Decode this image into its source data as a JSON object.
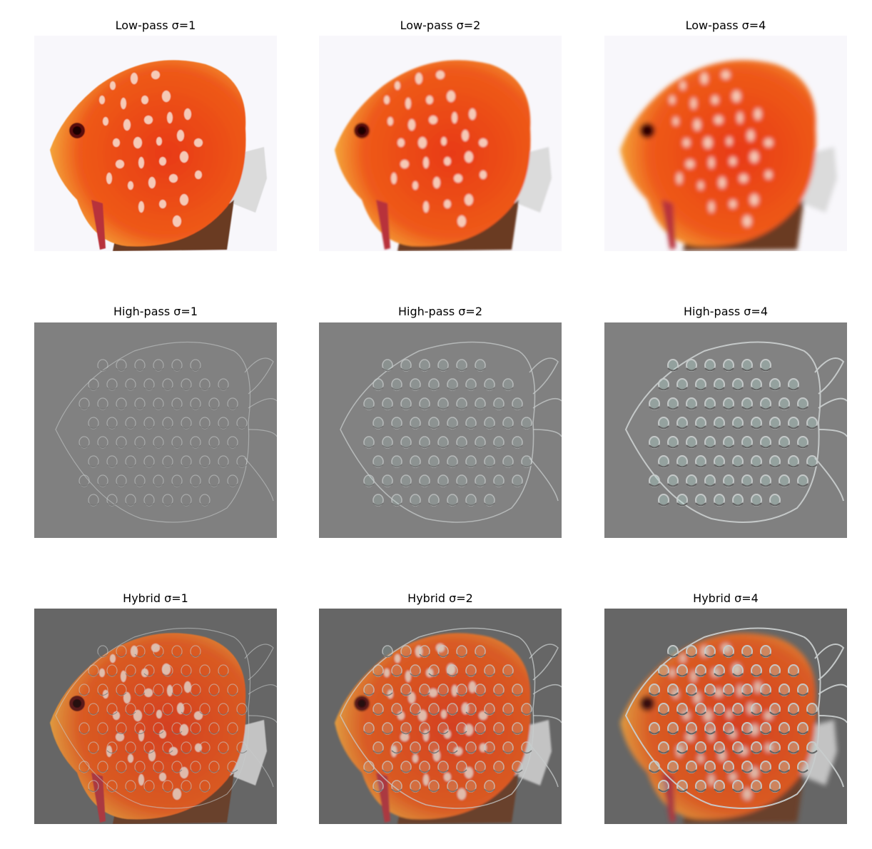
{
  "figure": {
    "panels": [
      {
        "title": "Low-pass σ=1",
        "kind": "lowpass",
        "blur": 0.6,
        "bg": "#f8f7fb"
      },
      {
        "title": "Low-pass σ=2",
        "kind": "lowpass",
        "blur": 1.4,
        "bg": "#f8f7fb"
      },
      {
        "title": "Low-pass σ=4",
        "kind": "lowpass",
        "blur": 3.2,
        "bg": "#f8f7fb"
      },
      {
        "title": "High-pass σ=1",
        "kind": "highpass",
        "strength": 0.35,
        "bg": "#808080"
      },
      {
        "title": "High-pass σ=2",
        "kind": "highpass",
        "strength": 0.65,
        "bg": "#808080"
      },
      {
        "title": "High-pass σ=4",
        "kind": "highpass",
        "strength": 1.0,
        "bg": "#808080"
      },
      {
        "title": "Hybrid σ=1",
        "kind": "hybrid",
        "blur": 0.6,
        "strength": 0.35,
        "bg": "#666666"
      },
      {
        "title": "Hybrid σ=2",
        "kind": "hybrid",
        "blur": 1.4,
        "strength": 0.65,
        "bg": "#666666"
      },
      {
        "title": "Hybrid σ=4",
        "kind": "hybrid",
        "blur": 3.2,
        "strength": 1.0,
        "bg": "#666666"
      }
    ],
    "colors": {
      "fish_body": "#e83a12",
      "fish_edge": "#f4a43a",
      "fish_spot": "#f6d7c8",
      "fin": "#d9d9d9",
      "edge_light": "#c8cccc",
      "edge_dark": "#5e5e5e",
      "seed_tint": "#b8e0d8"
    }
  }
}
